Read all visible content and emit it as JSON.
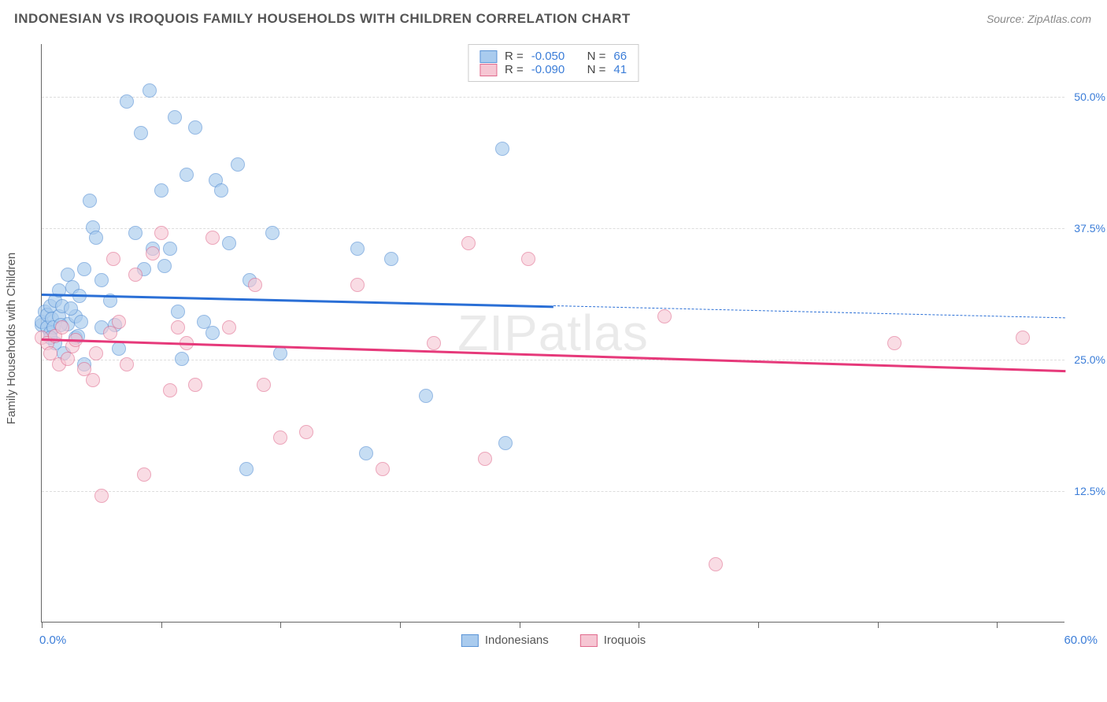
{
  "header": {
    "title": "INDONESIAN VS IROQUOIS FAMILY HOUSEHOLDS WITH CHILDREN CORRELATION CHART",
    "source_label": "Source:",
    "source_name": "ZipAtlas.com"
  },
  "chart": {
    "type": "scatter",
    "ylabel": "Family Households with Children",
    "xlim": [
      0,
      60
    ],
    "ylim": [
      0,
      55
    ],
    "xtick_positions": [
      0,
      7,
      14,
      21,
      28,
      35,
      42,
      49,
      56
    ],
    "x_axis_min_label": "0.0%",
    "x_axis_max_label": "60.0%",
    "y_gridlines": [
      {
        "value": 12.5,
        "label": "12.5%"
      },
      {
        "value": 25.0,
        "label": "25.0%"
      },
      {
        "value": 37.5,
        "label": "37.5%"
      },
      {
        "value": 50.0,
        "label": "50.0%"
      }
    ],
    "background_color": "#ffffff",
    "grid_color": "#dddddd",
    "axis_color": "#666666",
    "tick_label_color": "#3b7dd8",
    "marker_radius": 9,
    "series": [
      {
        "name": "Indonesians",
        "fill": "#a9cbee",
        "stroke": "#5b94d6",
        "fill_opacity": 0.65,
        "line_color": "#2a6fd6",
        "R": "-0.050",
        "N": "66",
        "trend": {
          "x1": 0,
          "y1": 31.3,
          "x2": 60,
          "y2": 29.0,
          "solid_until_x": 30
        },
        "points": [
          [
            0.0,
            28.2
          ],
          [
            0.0,
            28.5
          ],
          [
            0.2,
            29.5
          ],
          [
            0.3,
            28.0
          ],
          [
            0.3,
            29.2
          ],
          [
            0.5,
            30.0
          ],
          [
            0.5,
            27.5
          ],
          [
            0.6,
            28.8
          ],
          [
            0.7,
            28.0
          ],
          [
            0.8,
            30.5
          ],
          [
            0.8,
            26.5
          ],
          [
            1.0,
            29.0
          ],
          [
            1.0,
            31.5
          ],
          [
            1.2,
            30.0
          ],
          [
            1.3,
            25.5
          ],
          [
            1.5,
            28.3
          ],
          [
            1.5,
            33.0
          ],
          [
            1.8,
            31.8
          ],
          [
            2.0,
            29.0
          ],
          [
            2.0,
            27.0
          ],
          [
            2.3,
            28.5
          ],
          [
            2.5,
            33.5
          ],
          [
            2.5,
            24.5
          ],
          [
            2.8,
            40.0
          ],
          [
            3.0,
            37.5
          ],
          [
            3.2,
            36.5
          ],
          [
            3.5,
            32.5
          ],
          [
            3.5,
            28.0
          ],
          [
            4.0,
            30.5
          ],
          [
            4.3,
            28.2
          ],
          [
            4.5,
            26.0
          ],
          [
            5.0,
            49.5
          ],
          [
            5.5,
            37.0
          ],
          [
            5.8,
            46.5
          ],
          [
            6.0,
            33.5
          ],
          [
            6.3,
            50.5
          ],
          [
            6.5,
            35.5
          ],
          [
            7.0,
            41.0
          ],
          [
            7.2,
            33.8
          ],
          [
            7.5,
            35.5
          ],
          [
            7.8,
            48.0
          ],
          [
            8.0,
            29.5
          ],
          [
            8.2,
            25.0
          ],
          [
            8.5,
            42.5
          ],
          [
            9.0,
            47.0
          ],
          [
            9.5,
            28.5
          ],
          [
            10.0,
            27.5
          ],
          [
            10.2,
            42.0
          ],
          [
            10.5,
            41.0
          ],
          [
            11.0,
            36.0
          ],
          [
            11.5,
            43.5
          ],
          [
            12.0,
            14.5
          ],
          [
            12.2,
            32.5
          ],
          [
            13.5,
            37.0
          ],
          [
            14.0,
            25.5
          ],
          [
            18.5,
            35.5
          ],
          [
            19.0,
            16.0
          ],
          [
            20.5,
            34.5
          ],
          [
            22.5,
            21.5
          ],
          [
            27.0,
            45.0
          ],
          [
            27.2,
            17.0
          ],
          [
            0.5,
            27.0
          ],
          [
            1.1,
            28.2
          ],
          [
            1.7,
            29.8
          ],
          [
            2.2,
            31.0
          ],
          [
            2.1,
            27.2
          ]
        ]
      },
      {
        "name": "Iroquois",
        "fill": "#f6c6d3",
        "stroke": "#e06a8d",
        "fill_opacity": 0.6,
        "line_color": "#e6397a",
        "R": "-0.090",
        "N": "41",
        "trend": {
          "x1": 0,
          "y1": 27.0,
          "x2": 60,
          "y2": 24.0,
          "solid_until_x": 60
        },
        "points": [
          [
            0.0,
            27.0
          ],
          [
            0.3,
            26.5
          ],
          [
            0.5,
            25.5
          ],
          [
            0.8,
            27.2
          ],
          [
            1.0,
            24.5
          ],
          [
            1.2,
            28.0
          ],
          [
            1.5,
            25.0
          ],
          [
            1.8,
            26.2
          ],
          [
            2.0,
            26.8
          ],
          [
            2.5,
            24.0
          ],
          [
            3.0,
            23.0
          ],
          [
            3.2,
            25.5
          ],
          [
            3.5,
            12.0
          ],
          [
            4.0,
            27.5
          ],
          [
            4.2,
            34.5
          ],
          [
            4.5,
            28.5
          ],
          [
            5.0,
            24.5
          ],
          [
            5.5,
            33.0
          ],
          [
            6.0,
            14.0
          ],
          [
            6.5,
            35.0
          ],
          [
            7.0,
            37.0
          ],
          [
            7.5,
            22.0
          ],
          [
            8.0,
            28.0
          ],
          [
            8.5,
            26.5
          ],
          [
            9.0,
            22.5
          ],
          [
            10.0,
            36.5
          ],
          [
            11.0,
            28.0
          ],
          [
            12.5,
            32.0
          ],
          [
            13.0,
            22.5
          ],
          [
            14.0,
            17.5
          ],
          [
            15.5,
            18.0
          ],
          [
            18.5,
            32.0
          ],
          [
            20.0,
            14.5
          ],
          [
            23.0,
            26.5
          ],
          [
            25.0,
            36.0
          ],
          [
            26.0,
            15.5
          ],
          [
            28.5,
            34.5
          ],
          [
            36.5,
            29.0
          ],
          [
            39.5,
            5.5
          ],
          [
            50.0,
            26.5
          ],
          [
            57.5,
            27.0
          ]
        ]
      }
    ],
    "legend_top": {
      "r_label": "R =",
      "n_label": "N ="
    },
    "legend_bottom_labels": [
      "Indonesians",
      "Iroquois"
    ],
    "watermark": "ZIPatlas"
  }
}
